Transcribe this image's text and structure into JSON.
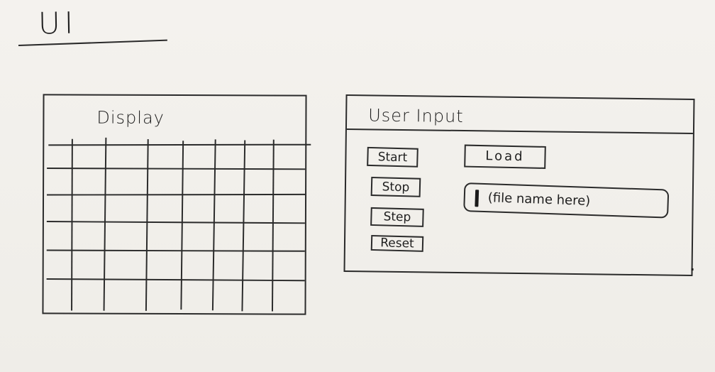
{
  "page": {
    "title": "UI"
  },
  "display": {
    "title": "Display",
    "grid": {
      "columns": 7,
      "rows": 6
    }
  },
  "user_input": {
    "title": "User Input",
    "buttons": {
      "start": "Start",
      "stop": "Stop",
      "step": "Step",
      "reset": "Reset",
      "load": "Load"
    },
    "file_input": {
      "placeholder": "(file name here)"
    }
  },
  "colors": {
    "ink": "#2b2b2b",
    "paper": "#f1efea"
  },
  "icons": {
    "text_caret": "text-cursor-icon"
  }
}
